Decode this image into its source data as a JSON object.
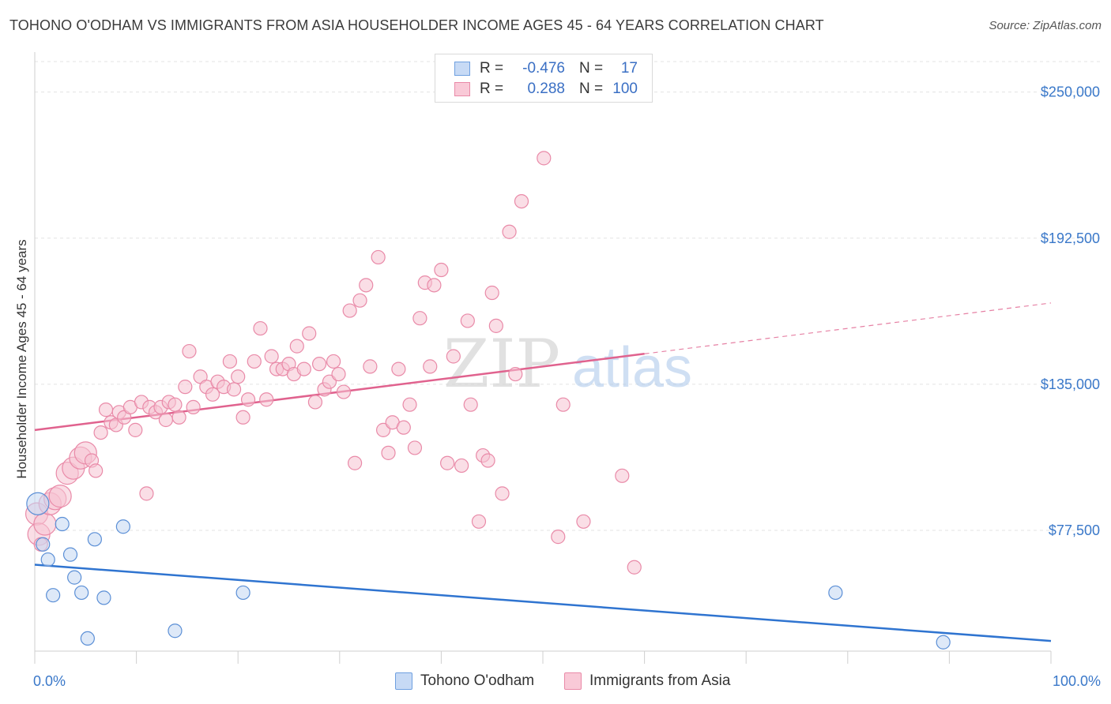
{
  "header": {
    "title": "TOHONO O'ODHAM VS IMMIGRANTS FROM ASIA HOUSEHOLDER INCOME AGES 45 - 64 YEARS CORRELATION CHART",
    "source": "Source: ZipAtlas.com"
  },
  "watermark": {
    "zip": "ZIP",
    "atlas": "atlas"
  },
  "legend": {
    "rows": [
      {
        "r_label": "R =",
        "r_value": "-0.476",
        "n_label": "N =",
        "n_value": "17",
        "color": "#6fa0e0",
        "fill": "#c7daf5"
      },
      {
        "r_label": "R =",
        "r_value": "0.288",
        "n_label": "N =",
        "n_value": "100",
        "color": "#e98aa8",
        "fill": "#f9c9d7"
      }
    ]
  },
  "bottom_legend": [
    {
      "label": "Tohono O'odham"
    },
    {
      "label": "Immigrants from Asia"
    }
  ],
  "chart_data": {
    "type": "scatter",
    "title": "TOHONO O'ODHAM VS IMMIGRANTS FROM ASIA HOUSEHOLDER INCOME AGES 45 - 64 YEARS CORRELATION CHART",
    "xlabel": "",
    "ylabel": "Householder Income Ages 45 - 64 years",
    "xlim": [
      0,
      100
    ],
    "ylim": [
      30000,
      262000
    ],
    "x_tick_labels": [
      "0.0%",
      "100.0%"
    ],
    "y_ticks": [
      77500,
      135000,
      192500,
      250000
    ],
    "y_tick_labels": [
      "$77,500",
      "$135,000",
      "$192,500",
      "$250,000"
    ],
    "grid": true,
    "legend_position": "top-center",
    "series": [
      {
        "name": "Tohono O'odham",
        "color": "#5b8fd6",
        "fill": "#c3d7f3",
        "trend": {
          "x0": 0,
          "y0": 64000,
          "x1": 100,
          "y1": 34000,
          "color": "#2f74d0"
        },
        "points": [
          {
            "x": 0.3,
            "y": 88000,
            "s": 2
          },
          {
            "x": 0.8,
            "y": 72000,
            "s": 1
          },
          {
            "x": 1.3,
            "y": 66000,
            "s": 1
          },
          {
            "x": 1.8,
            "y": 52000,
            "s": 1
          },
          {
            "x": 2.7,
            "y": 80000,
            "s": 1
          },
          {
            "x": 3.5,
            "y": 68000,
            "s": 1
          },
          {
            "x": 3.9,
            "y": 59000,
            "s": 1
          },
          {
            "x": 4.6,
            "y": 53000,
            "s": 1
          },
          {
            "x": 5.2,
            "y": 35000,
            "s": 1
          },
          {
            "x": 5.9,
            "y": 74000,
            "s": 1
          },
          {
            "x": 6.8,
            "y": 51000,
            "s": 1
          },
          {
            "x": 8.7,
            "y": 79000,
            "s": 1
          },
          {
            "x": 13.8,
            "y": 38000,
            "s": 1
          },
          {
            "x": 20.5,
            "y": 53000,
            "s": 1
          },
          {
            "x": 78.8,
            "y": 53000,
            "s": 1
          },
          {
            "x": 89.4,
            "y": 33500,
            "s": 1
          }
        ]
      },
      {
        "name": "Immigrants from Asia",
        "color": "#e98aa8",
        "fill": "#f6c2d2",
        "trend": {
          "x0": 0,
          "y0": 117000,
          "x1": 60,
          "y1": 147000,
          "color": "#e0628e"
        },
        "trend_extension": {
          "x0": 60,
          "y0": 147000,
          "x1": 100,
          "y1": 167000
        },
        "points": [
          {
            "x": 0.2,
            "y": 84000,
            "s": 2
          },
          {
            "x": 0.4,
            "y": 76000,
            "s": 2
          },
          {
            "x": 0.6,
            "y": 72000,
            "s": 1
          },
          {
            "x": 1.0,
            "y": 80000,
            "s": 2
          },
          {
            "x": 1.5,
            "y": 88000,
            "s": 2
          },
          {
            "x": 2.0,
            "y": 90000,
            "s": 2
          },
          {
            "x": 2.5,
            "y": 91000,
            "s": 2
          },
          {
            "x": 3.2,
            "y": 100000,
            "s": 2
          },
          {
            "x": 3.8,
            "y": 102000,
            "s": 2
          },
          {
            "x": 4.5,
            "y": 106000,
            "s": 2
          },
          {
            "x": 5.0,
            "y": 108000,
            "s": 2
          },
          {
            "x": 5.6,
            "y": 105000,
            "s": 1
          },
          {
            "x": 6.0,
            "y": 101000,
            "s": 1
          },
          {
            "x": 6.5,
            "y": 116000,
            "s": 1
          },
          {
            "x": 7.0,
            "y": 125000,
            "s": 1
          },
          {
            "x": 7.5,
            "y": 120000,
            "s": 1
          },
          {
            "x": 8.0,
            "y": 119000,
            "s": 1
          },
          {
            "x": 8.3,
            "y": 124000,
            "s": 1
          },
          {
            "x": 8.8,
            "y": 122000,
            "s": 1
          },
          {
            "x": 9.4,
            "y": 126000,
            "s": 1
          },
          {
            "x": 9.9,
            "y": 117000,
            "s": 1
          },
          {
            "x": 10.5,
            "y": 128000,
            "s": 1
          },
          {
            "x": 11.0,
            "y": 92000,
            "s": 1
          },
          {
            "x": 11.3,
            "y": 126000,
            "s": 1
          },
          {
            "x": 11.9,
            "y": 124000,
            "s": 1
          },
          {
            "x": 12.4,
            "y": 126000,
            "s": 1
          },
          {
            "x": 12.9,
            "y": 121000,
            "s": 1
          },
          {
            "x": 13.2,
            "y": 128000,
            "s": 1
          },
          {
            "x": 13.8,
            "y": 127000,
            "s": 1
          },
          {
            "x": 14.2,
            "y": 122000,
            "s": 1
          },
          {
            "x": 14.8,
            "y": 134000,
            "s": 1
          },
          {
            "x": 15.2,
            "y": 148000,
            "s": 1
          },
          {
            "x": 15.6,
            "y": 126000,
            "s": 1
          },
          {
            "x": 16.3,
            "y": 138000,
            "s": 1
          },
          {
            "x": 16.9,
            "y": 134000,
            "s": 1
          },
          {
            "x": 17.5,
            "y": 131000,
            "s": 1
          },
          {
            "x": 18.0,
            "y": 136000,
            "s": 1
          },
          {
            "x": 18.6,
            "y": 134000,
            "s": 1
          },
          {
            "x": 19.2,
            "y": 144000,
            "s": 1
          },
          {
            "x": 19.6,
            "y": 133000,
            "s": 1
          },
          {
            "x": 20.0,
            "y": 138000,
            "s": 1
          },
          {
            "x": 20.5,
            "y": 122000,
            "s": 1
          },
          {
            "x": 21.0,
            "y": 129000,
            "s": 1
          },
          {
            "x": 21.6,
            "y": 144000,
            "s": 1
          },
          {
            "x": 22.2,
            "y": 157000,
            "s": 1
          },
          {
            "x": 22.8,
            "y": 129000,
            "s": 1
          },
          {
            "x": 23.3,
            "y": 146000,
            "s": 1
          },
          {
            "x": 23.8,
            "y": 141000,
            "s": 1
          },
          {
            "x": 24.4,
            "y": 141000,
            "s": 1
          },
          {
            "x": 25.0,
            "y": 143000,
            "s": 1
          },
          {
            "x": 25.5,
            "y": 139000,
            "s": 1
          },
          {
            "x": 25.8,
            "y": 150000,
            "s": 1
          },
          {
            "x": 26.5,
            "y": 141000,
            "s": 1
          },
          {
            "x": 27.0,
            "y": 155000,
            "s": 1
          },
          {
            "x": 27.6,
            "y": 128000,
            "s": 1
          },
          {
            "x": 28.0,
            "y": 143000,
            "s": 1
          },
          {
            "x": 28.5,
            "y": 133000,
            "s": 1
          },
          {
            "x": 29.0,
            "y": 136000,
            "s": 1
          },
          {
            "x": 29.4,
            "y": 144000,
            "s": 1
          },
          {
            "x": 29.9,
            "y": 139000,
            "s": 1
          },
          {
            "x": 30.4,
            "y": 132000,
            "s": 1
          },
          {
            "x": 31.0,
            "y": 164000,
            "s": 1
          },
          {
            "x": 31.5,
            "y": 104000,
            "s": 1
          },
          {
            "x": 32.0,
            "y": 168000,
            "s": 1
          },
          {
            "x": 32.6,
            "y": 174000,
            "s": 1
          },
          {
            "x": 33.0,
            "y": 142000,
            "s": 1
          },
          {
            "x": 33.8,
            "y": 185000,
            "s": 1
          },
          {
            "x": 34.3,
            "y": 117000,
            "s": 1
          },
          {
            "x": 34.8,
            "y": 108000,
            "s": 1
          },
          {
            "x": 35.2,
            "y": 120000,
            "s": 1
          },
          {
            "x": 35.8,
            "y": 141000,
            "s": 1
          },
          {
            "x": 36.3,
            "y": 118000,
            "s": 1
          },
          {
            "x": 36.9,
            "y": 127000,
            "s": 1
          },
          {
            "x": 37.4,
            "y": 110000,
            "s": 1
          },
          {
            "x": 37.9,
            "y": 161000,
            "s": 1
          },
          {
            "x": 38.4,
            "y": 175000,
            "s": 1
          },
          {
            "x": 38.9,
            "y": 142000,
            "s": 1
          },
          {
            "x": 39.3,
            "y": 174000,
            "s": 1
          },
          {
            "x": 40.0,
            "y": 180000,
            "s": 1
          },
          {
            "x": 40.6,
            "y": 104000,
            "s": 1
          },
          {
            "x": 41.2,
            "y": 146000,
            "s": 1
          },
          {
            "x": 42.0,
            "y": 103000,
            "s": 1
          },
          {
            "x": 42.6,
            "y": 160000,
            "s": 1
          },
          {
            "x": 42.9,
            "y": 127000,
            "s": 1
          },
          {
            "x": 43.7,
            "y": 81000,
            "s": 1
          },
          {
            "x": 44.1,
            "y": 107000,
            "s": 1
          },
          {
            "x": 44.6,
            "y": 105000,
            "s": 1
          },
          {
            "x": 45.0,
            "y": 171000,
            "s": 1
          },
          {
            "x": 45.4,
            "y": 158000,
            "s": 1
          },
          {
            "x": 46.0,
            "y": 92000,
            "s": 1
          },
          {
            "x": 46.7,
            "y": 195000,
            "s": 1
          },
          {
            "x": 47.3,
            "y": 139000,
            "s": 1
          },
          {
            "x": 47.9,
            "y": 207000,
            "s": 1
          },
          {
            "x": 50.1,
            "y": 224000,
            "s": 1
          },
          {
            "x": 51.5,
            "y": 75000,
            "s": 1
          },
          {
            "x": 52.0,
            "y": 127000,
            "s": 1
          },
          {
            "x": 54.0,
            "y": 81000,
            "s": 1
          },
          {
            "x": 57.8,
            "y": 99000,
            "s": 1
          },
          {
            "x": 59.0,
            "y": 63000,
            "s": 1
          }
        ]
      }
    ]
  }
}
